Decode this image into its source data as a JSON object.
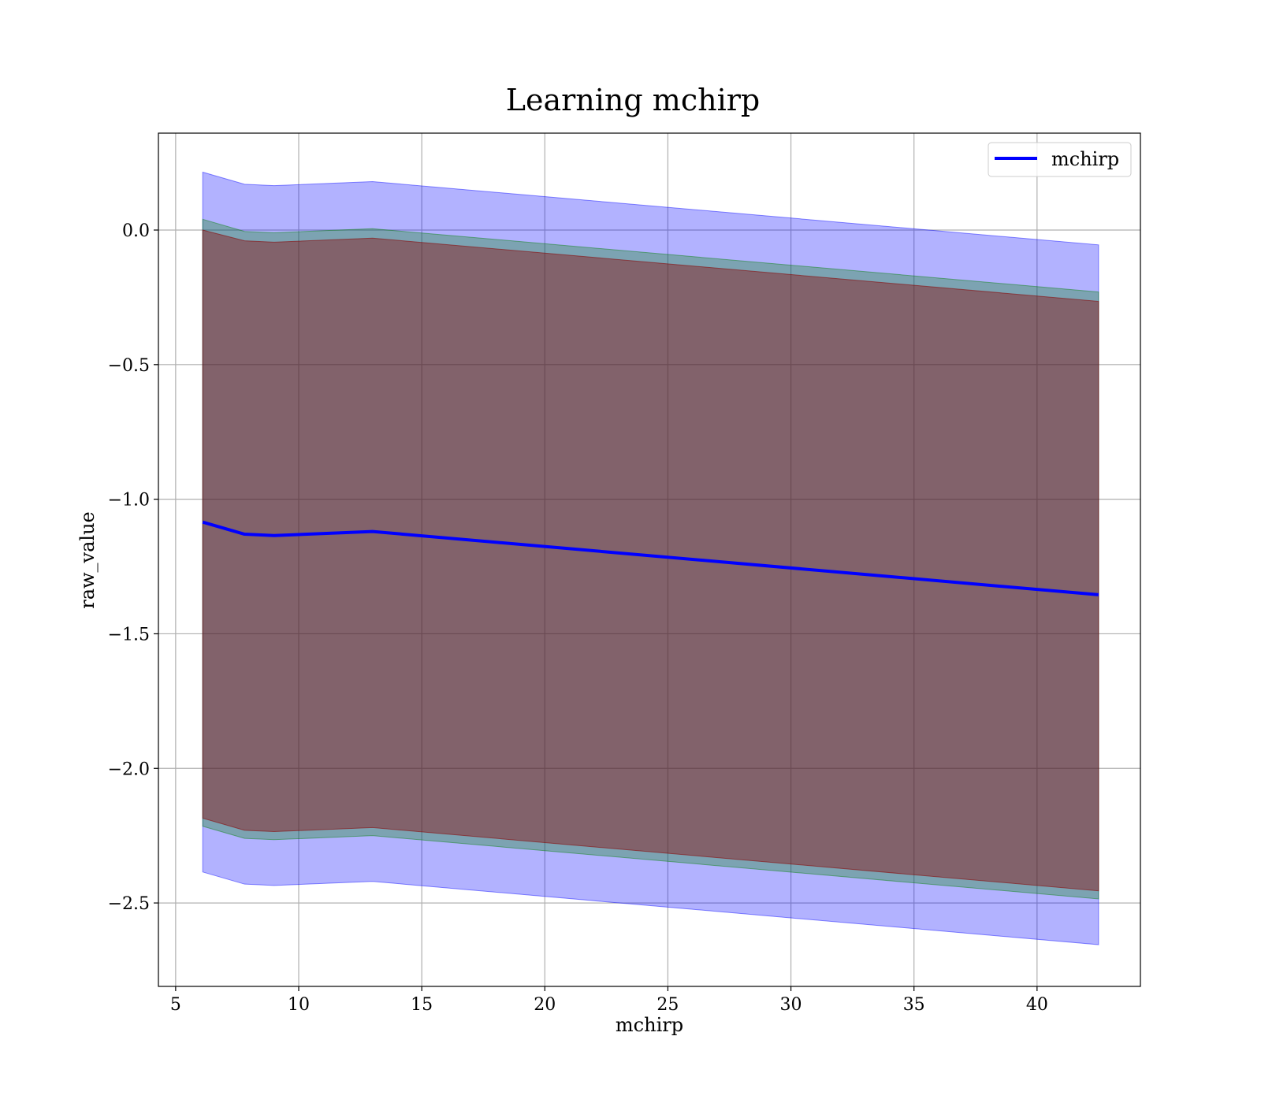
{
  "chart_data": {
    "type": "area",
    "title": "Learning mchirp",
    "xlabel": "mchirp",
    "ylabel": "raw_value",
    "xlim": [
      4.3,
      44.2
    ],
    "ylim": [
      -2.81,
      0.36
    ],
    "xticks": [
      5,
      10,
      15,
      20,
      25,
      30,
      35,
      40
    ],
    "xtick_labels": [
      "5",
      "10",
      "15",
      "20",
      "25",
      "30",
      "35",
      "40"
    ],
    "yticks": [
      0.0,
      -0.5,
      -1.0,
      -1.5,
      -2.0,
      -2.5
    ],
    "ytick_labels": [
      "0.0",
      "−0.5",
      "−1.0",
      "−1.5",
      "−2.0",
      "−2.5"
    ],
    "grid": true,
    "legend": {
      "position": "upper-right",
      "entries": [
        "mchirp"
      ]
    },
    "x": [
      6.1,
      7.8,
      9.0,
      13.0,
      42.5
    ],
    "series": [
      {
        "name": "mchirp",
        "kind": "line",
        "color": "#0000ff",
        "values": [
          -1.085,
          -1.13,
          -1.135,
          -1.12,
          -1.355
        ]
      }
    ],
    "bands": [
      {
        "kind": "fill_between",
        "color": "#0000ff",
        "opacity": 0.3,
        "lower": [
          -2.385,
          -2.43,
          -2.435,
          -2.42,
          -2.655
        ],
        "upper": [
          0.215,
          0.17,
          0.165,
          0.18,
          -0.055
        ]
      },
      {
        "kind": "fill_between",
        "color": "#008000",
        "opacity": 0.3,
        "lower": [
          -2.215,
          -2.26,
          -2.265,
          -2.25,
          -2.485
        ],
        "upper": [
          0.04,
          -0.005,
          -0.01,
          0.005,
          -0.23
        ]
      },
      {
        "kind": "fill_between",
        "color": "#8b0000",
        "opacity": 0.4,
        "lower": [
          -2.185,
          -2.23,
          -2.235,
          -2.22,
          -2.455
        ],
        "upper": [
          0.0,
          -0.04,
          -0.045,
          -0.03,
          -0.265
        ]
      }
    ]
  }
}
